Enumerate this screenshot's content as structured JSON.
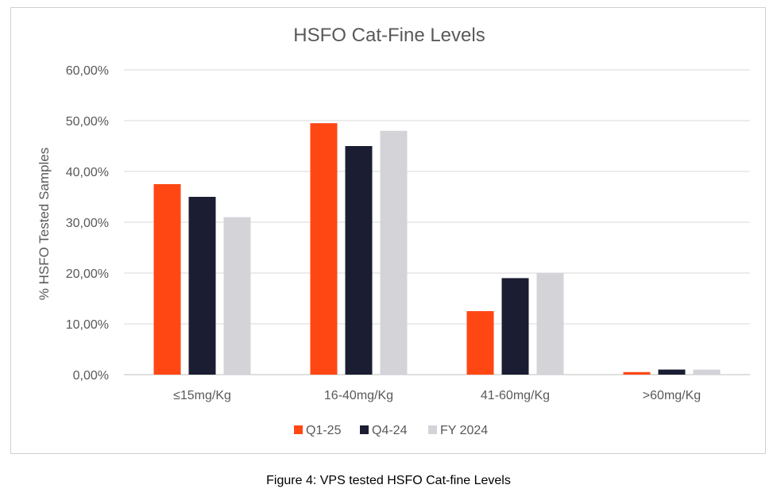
{
  "chart_data": {
    "type": "bar",
    "title": "HSFO Cat-Fine Levels",
    "xlabel": "",
    "ylabel": "% HSFO Tested Samples",
    "categories": [
      "≤15mg/Kg",
      "16-40mg/Kg",
      "41-60mg/Kg",
      ">60mg/Kg"
    ],
    "series": [
      {
        "name": "Q1-25",
        "values": [
          37.5,
          49.5,
          12.5,
          0.5
        ],
        "color": "#ff4714"
      },
      {
        "name": "Q4-24",
        "values": [
          35.0,
          45.0,
          19.0,
          1.0
        ],
        "color": "#1b1d32"
      },
      {
        "name": "FY 2024",
        "values": [
          31.0,
          48.0,
          20.0,
          1.0
        ],
        "color": "#d4d3d8"
      }
    ],
    "ylim": [
      0,
      60
    ],
    "yticks": [
      0,
      10,
      20,
      30,
      40,
      50,
      60
    ],
    "ytick_labels": [
      "0,00%",
      "10,00%",
      "20,00%",
      "30,00%",
      "40,00%",
      "50,00%",
      "60,00%"
    ],
    "grid": true,
    "legend_position": "bottom",
    "gridline_color": "#d9d9d9",
    "axis_line_color": "#bfbfbf",
    "text_color": "#595959"
  },
  "caption": "Figure 4: VPS tested HSFO Cat-fine Levels"
}
